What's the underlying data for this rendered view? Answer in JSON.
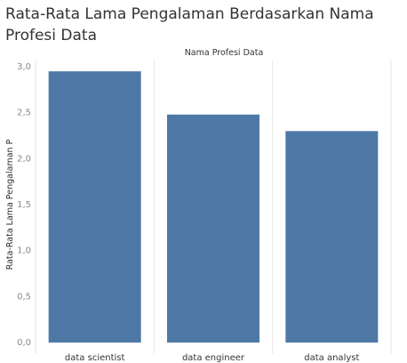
{
  "chart_data": {
    "type": "bar",
    "title": "Rata-Rata Lama Pengalaman Berdasarkan Nama Profesi Data",
    "header_label": "Nama Profesi Data",
    "ylabel": "Rata-Rata Lama Pengalaman P",
    "xlabel": "",
    "categories": [
      "data scientist",
      "data engineer",
      "data analyst"
    ],
    "values": [
      2.95,
      2.48,
      2.3
    ],
    "ylim": [
      0,
      3.0
    ],
    "yticks": [
      "0,0",
      "0,5",
      "1,0",
      "1,5",
      "2,0",
      "2,5",
      "3,0"
    ],
    "bar_color": "#4E79A7",
    "grid": false
  }
}
